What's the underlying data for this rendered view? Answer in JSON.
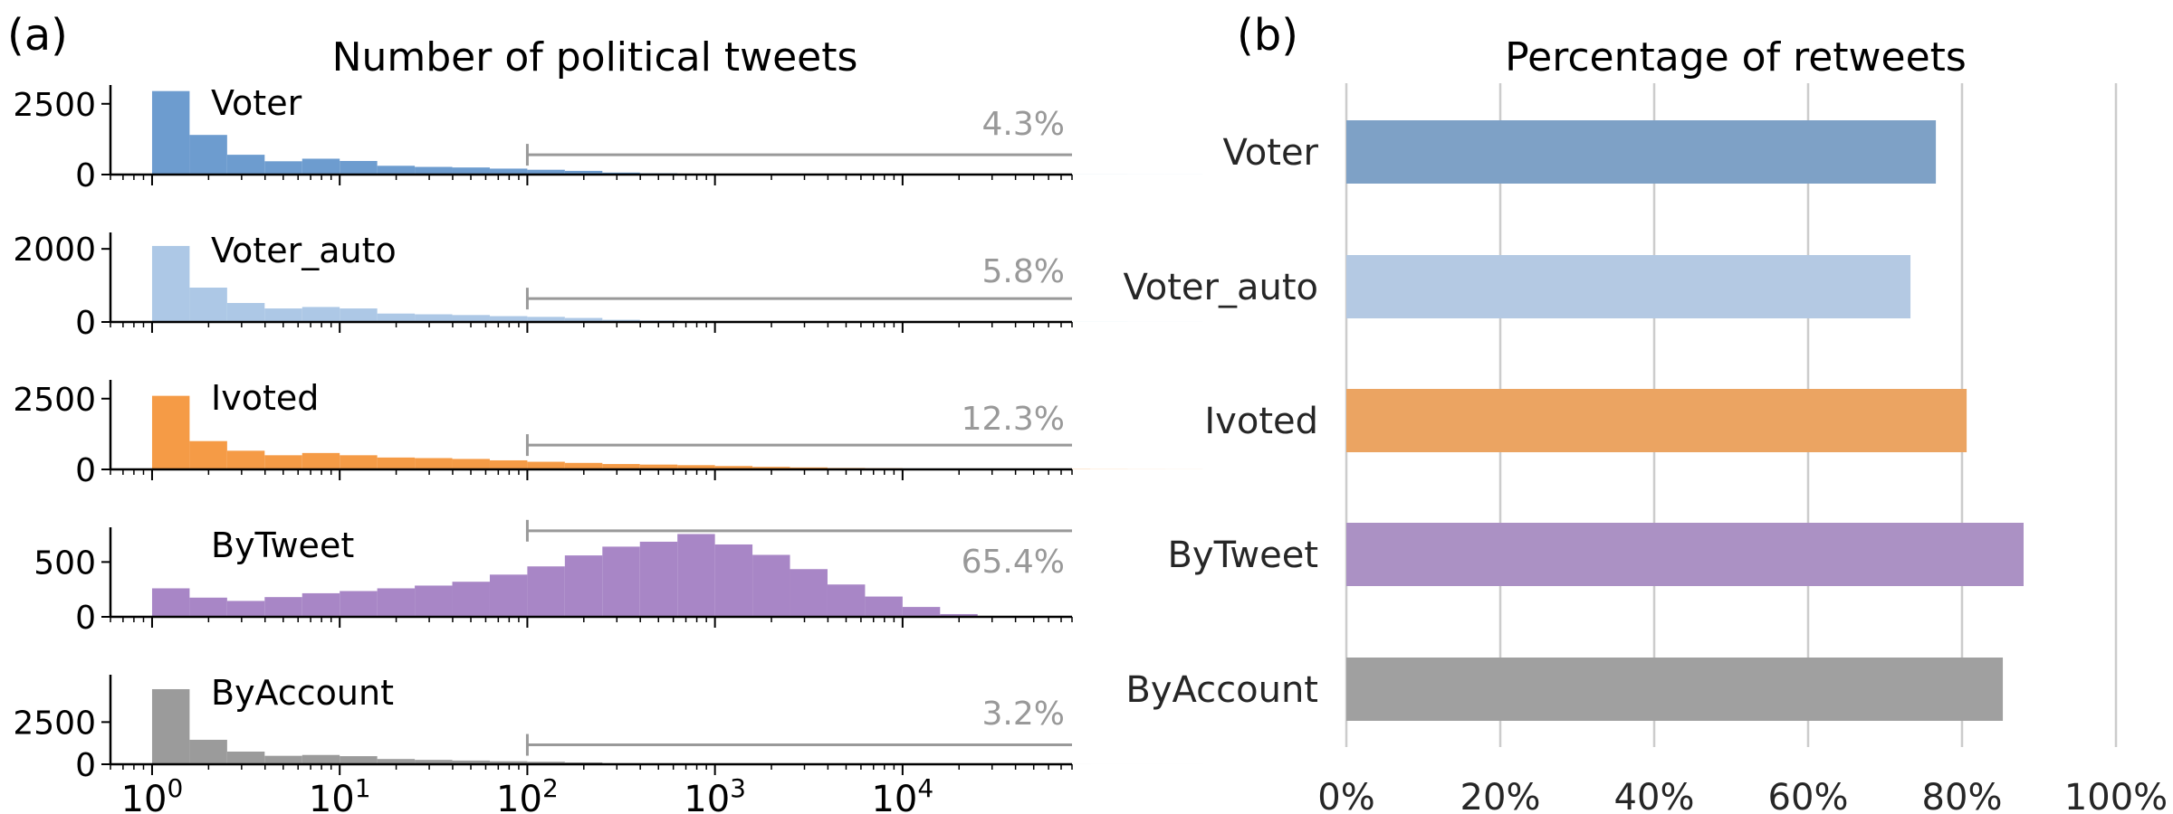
{
  "panel_a_label": "(a)",
  "panel_b_label": "(b)",
  "chart_data": [
    {
      "type": "bar",
      "subtype": "histogram-small-multiples",
      "title": "Number of political tweets",
      "x_scale": "log",
      "xlim": [
        0.6,
        80000
      ],
      "x_tick_labels": [
        "10^0",
        "10^1",
        "10^2",
        "10^3",
        "10^4"
      ],
      "x_tick_values": [
        1,
        10,
        100,
        1000,
        10000
      ],
      "bins_per_decade": 5,
      "bin_start": 1,
      "marker_start_x": 100,
      "grid": false,
      "legend": "none",
      "panels": [
        {
          "name": "Voter",
          "color": "#6d9ccf",
          "ylim": [
            0,
            3100
          ],
          "yticks": [
            0,
            2500
          ],
          "annotation": "4.3%",
          "marker_level": 700,
          "counts": [
            2950,
            1400,
            700,
            470,
            560,
            480,
            310,
            270,
            250,
            210,
            170,
            130,
            70,
            45,
            30,
            22,
            16,
            12,
            10,
            8,
            6,
            5,
            4,
            3,
            2,
            2,
            1,
            1
          ]
        },
        {
          "name": "Voter_auto",
          "color": "#adc8e6",
          "ylim": [
            0,
            2400
          ],
          "yticks": [
            0,
            2000
          ],
          "annotation": "5.8%",
          "marker_level": 640,
          "counts": [
            2080,
            940,
            520,
            370,
            410,
            370,
            230,
            210,
            190,
            160,
            140,
            110,
            60,
            40,
            28,
            20,
            15,
            12,
            10,
            8,
            6,
            5,
            4,
            3,
            2,
            2,
            1,
            1
          ]
        },
        {
          "name": "Ivoted",
          "color": "#f59b46",
          "ylim": [
            0,
            3100
          ],
          "yticks": [
            0,
            2500
          ],
          "annotation": "12.3%",
          "marker_level": 860,
          "counts": [
            2600,
            1000,
            660,
            500,
            580,
            500,
            420,
            400,
            370,
            320,
            270,
            230,
            190,
            170,
            150,
            120,
            90,
            70,
            50,
            40,
            30,
            25,
            18,
            12,
            8,
            5,
            3,
            2
          ]
        },
        {
          "name": "ByTweet",
          "color": "#a886c6",
          "ylim": [
            0,
            800
          ],
          "yticks": [
            0,
            500
          ],
          "annotation": "65.4%",
          "marker_level": 785,
          "counts": [
            260,
            175,
            145,
            180,
            215,
            235,
            260,
            285,
            320,
            385,
            460,
            560,
            640,
            685,
            755,
            660,
            565,
            435,
            295,
            185,
            90,
            25,
            0,
            0,
            0,
            0,
            0,
            0
          ]
        },
        {
          "name": "ByAccount",
          "color": "#9b9b9b",
          "ylim": [
            0,
            5200
          ],
          "yticks": [
            0,
            2500
          ],
          "annotation": "3.2%",
          "marker_level": 1150,
          "counts": [
            4450,
            1450,
            750,
            500,
            550,
            480,
            310,
            260,
            220,
            180,
            150,
            110,
            60,
            40,
            28,
            20,
            15,
            12,
            9,
            7,
            5,
            4,
            3,
            2,
            2,
            1,
            1,
            1
          ]
        }
      ]
    },
    {
      "type": "bar",
      "orientation": "horizontal",
      "title": "Percentage of retweets",
      "categories": [
        "Voter",
        "Voter_auto",
        "Ivoted",
        "ByTweet",
        "ByAccount"
      ],
      "values": [
        76.6,
        73.3,
        80.6,
        88.0,
        85.3
      ],
      "colors": [
        "#7ea1c6",
        "#b4c9e3",
        "#eba462",
        "#ab91c4",
        "#a0a0a0"
      ],
      "xlim": [
        0,
        100
      ],
      "x_tick_labels": [
        "0%",
        "20%",
        "40%",
        "60%",
        "80%",
        "100%"
      ],
      "x_tick_values": [
        0,
        20,
        40,
        60,
        80,
        100
      ],
      "grid": "vertical",
      "legend": "none"
    }
  ]
}
